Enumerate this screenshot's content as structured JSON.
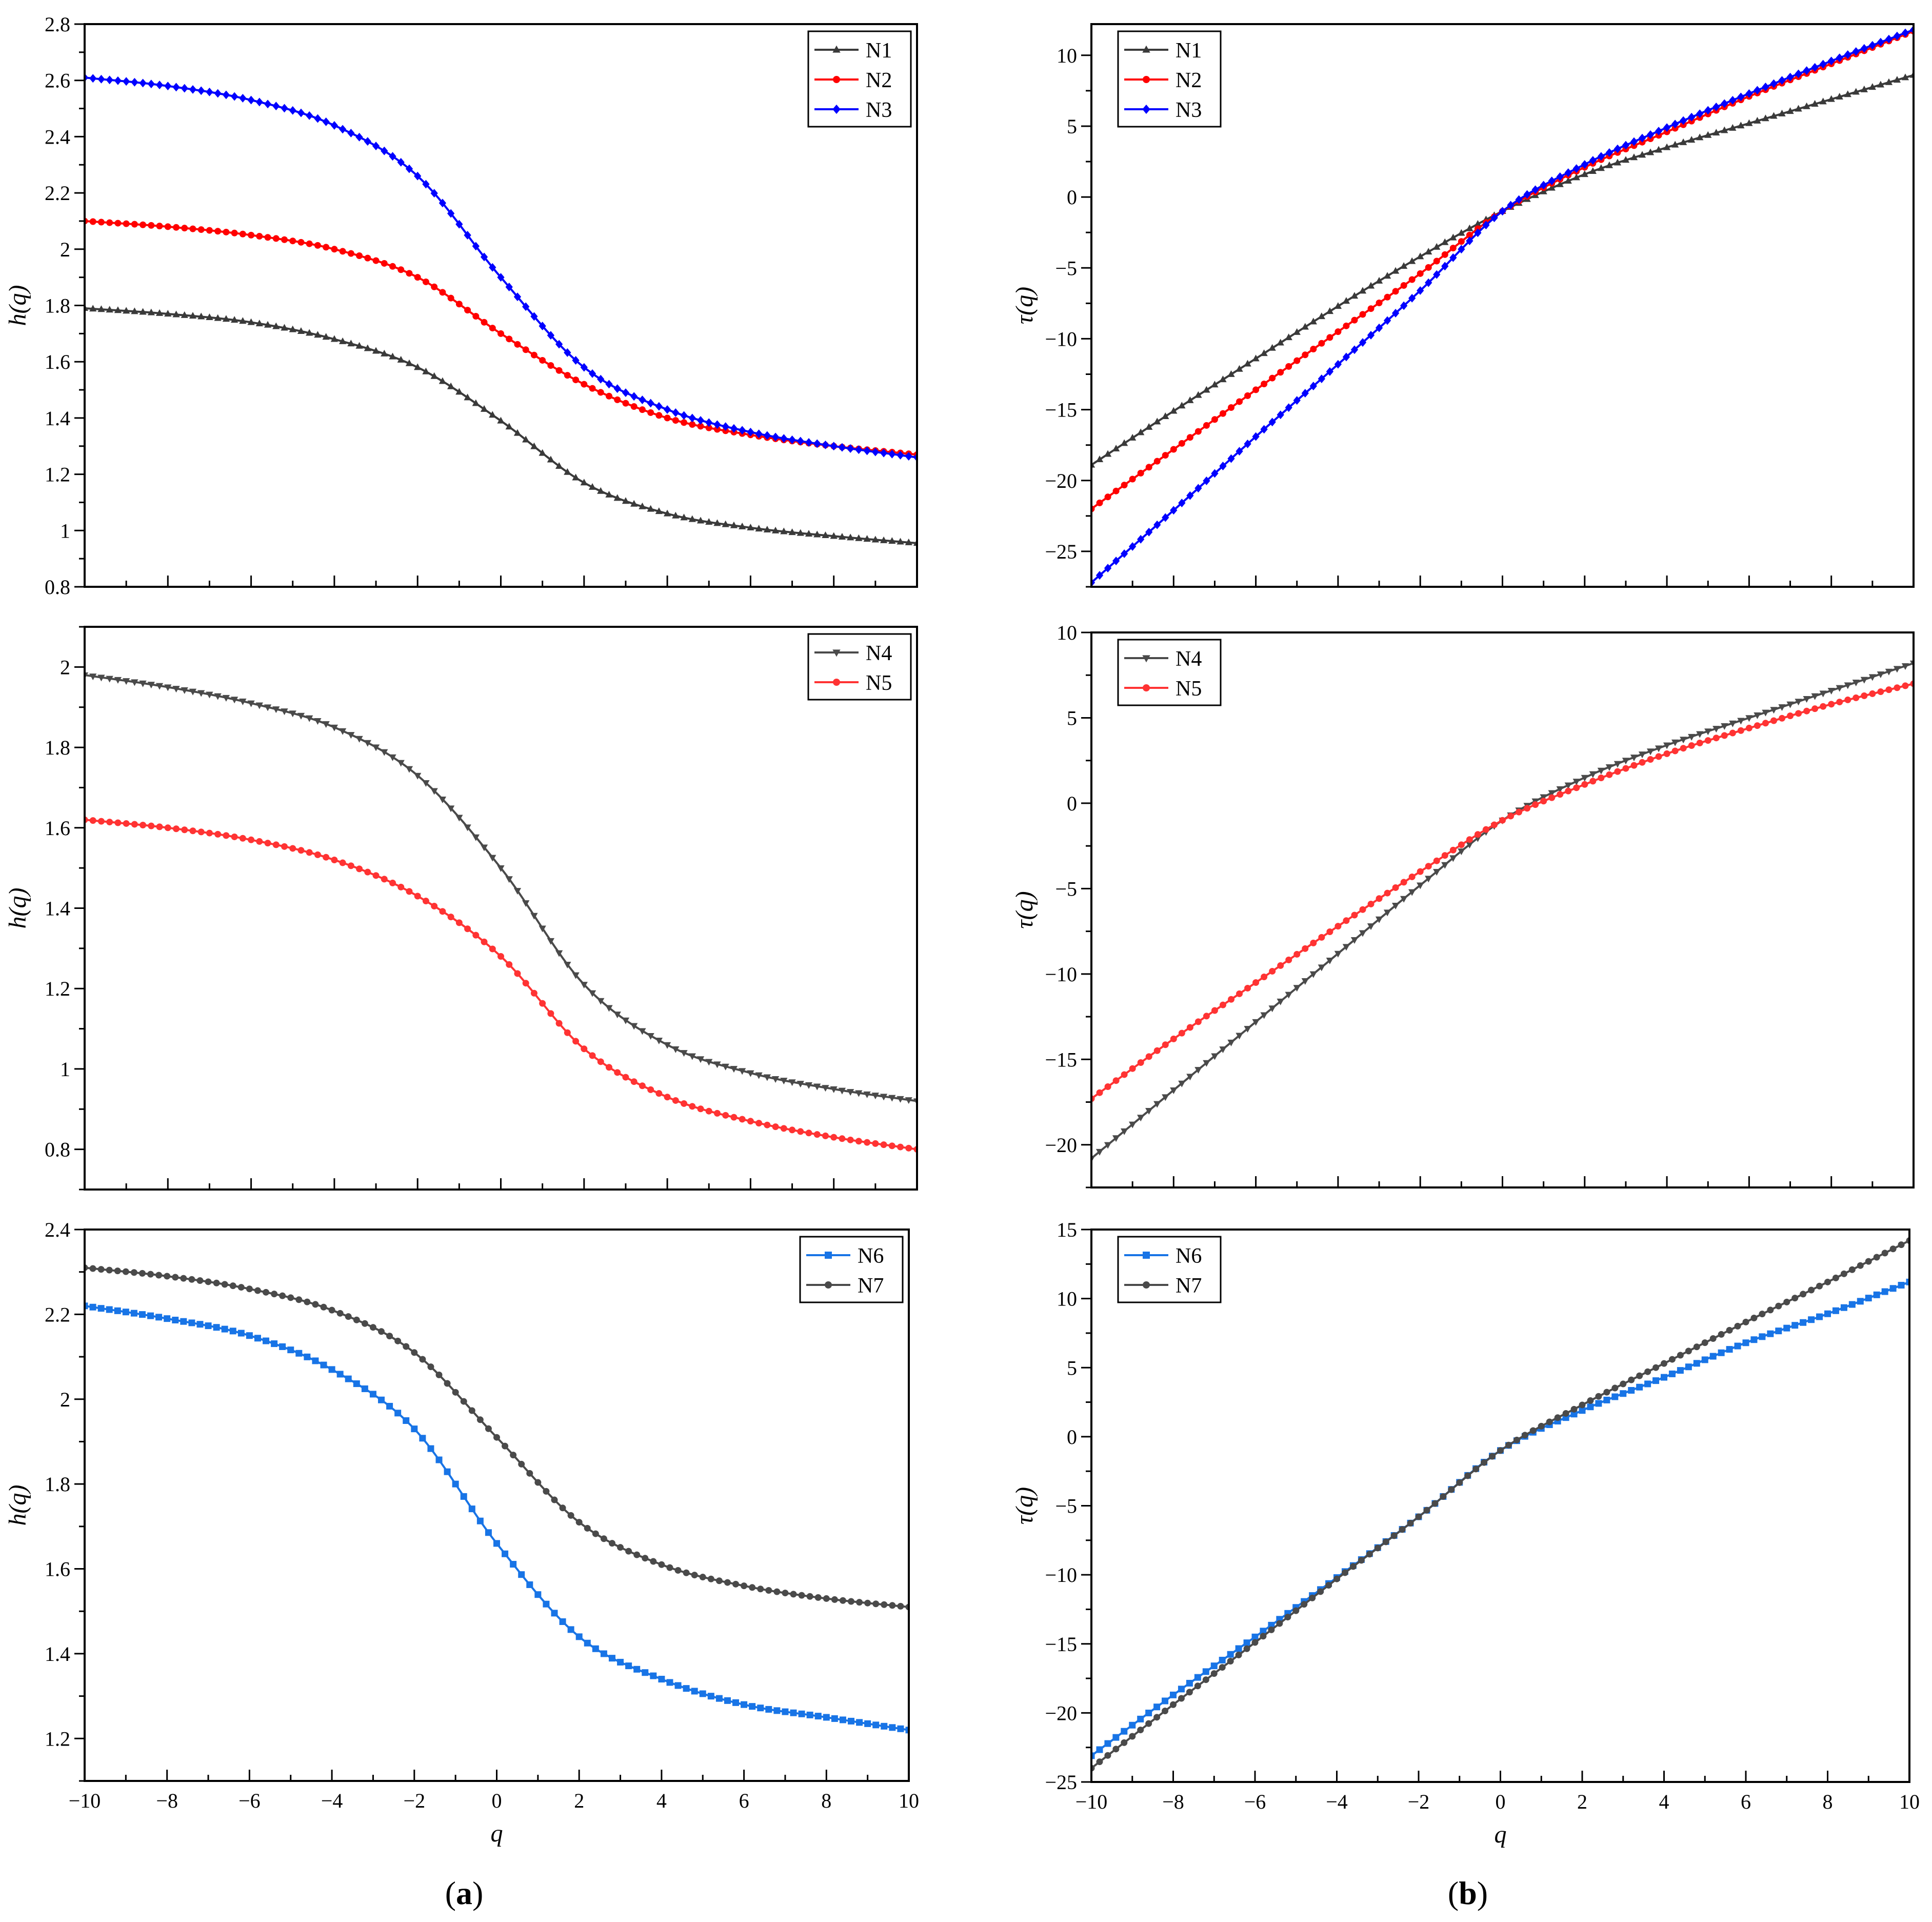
{
  "panel_labels": {
    "a": "a",
    "b": "b"
  },
  "chart_data": [
    {
      "id": "a1",
      "type": "line",
      "xlabel": "q",
      "ylabel": "h(q)",
      "xlim": [
        -10,
        10
      ],
      "ylim": [
        0.8,
        2.8
      ],
      "xticks": [
        -10,
        -8,
        -6,
        -4,
        -2,
        0,
        2,
        4,
        6,
        8,
        10
      ],
      "yticks": [
        0.8,
        1.0,
        1.2,
        1.4,
        1.6,
        1.8,
        2.0,
        2.2,
        2.4,
        2.6,
        2.8
      ],
      "show_xtick_labels": false,
      "legend": "top-right",
      "series": [
        {
          "name": "N1",
          "color": "#3a3a3a",
          "marker": "triangle-up",
          "values": [
            1.79,
            1.77,
            1.74,
            1.68,
            1.58,
            1.39,
            1.17,
            1.06,
            1.01,
            0.98,
            0.955
          ]
        },
        {
          "name": "N2",
          "color": "#ff0000",
          "marker": "circle",
          "values": [
            2.1,
            2.08,
            2.05,
            2.0,
            1.9,
            1.7,
            1.52,
            1.4,
            1.34,
            1.3,
            1.27
          ]
        },
        {
          "name": "N3",
          "color": "#0000ff",
          "marker": "diamond",
          "values": [
            2.61,
            2.58,
            2.53,
            2.44,
            2.26,
            1.9,
            1.58,
            1.43,
            1.35,
            1.3,
            1.26
          ]
        }
      ]
    },
    {
      "id": "b1",
      "type": "line",
      "xlabel": "q",
      "ylabel": "τ(q)",
      "xlim": [
        -10,
        10
      ],
      "ylim": [
        -27.5,
        12.2
      ],
      "xticks": [
        -10,
        -8,
        -6,
        -4,
        -2,
        0,
        2,
        4,
        6,
        8,
        10
      ],
      "yticks": [
        -25,
        -20,
        -15,
        -10,
        -5,
        0,
        5,
        10
      ],
      "show_xtick_labels": false,
      "legend": "top-left",
      "series": [
        {
          "name": "N1",
          "color": "#3a3a3a",
          "marker": "triangle-up",
          "values": [
            -18.9,
            -15.1,
            -11.4,
            -7.7,
            -4.2,
            -1.0,
            1.6,
            3.5,
            5.2,
            6.9,
            8.6
          ]
        },
        {
          "name": "N2",
          "color": "#ff0000",
          "marker": "circle",
          "values": [
            -22.0,
            -17.8,
            -13.6,
            -9.5,
            -5.4,
            -1.0,
            2.1,
            4.6,
            7.1,
            9.4,
            11.7
          ]
        },
        {
          "name": "N3",
          "color": "#0000ff",
          "marker": "diamond",
          "values": [
            -27.2,
            -22.1,
            -16.9,
            -11.8,
            -6.6,
            -1.0,
            2.3,
            4.9,
            7.3,
            9.6,
            11.8
          ]
        }
      ]
    },
    {
      "id": "a2",
      "type": "line",
      "xlabel": "q",
      "ylabel": "h(q)",
      "xlim": [
        -10,
        10
      ],
      "ylim": [
        0.7,
        2.1
      ],
      "xticks": [
        -10,
        -8,
        -6,
        -4,
        -2,
        0,
        2,
        4,
        6,
        8,
        10
      ],
      "yticks": [
        0.8,
        1.0,
        1.2,
        1.4,
        1.6,
        1.8,
        2.0
      ],
      "show_xtick_labels": false,
      "legend": "top-right",
      "series": [
        {
          "name": "N4",
          "color": "#4a4a4a",
          "marker": "triangle-down",
          "values": [
            1.98,
            1.95,
            1.91,
            1.85,
            1.73,
            1.5,
            1.21,
            1.06,
            0.99,
            0.95,
            0.92
          ]
        },
        {
          "name": "N5",
          "color": "#ff3333",
          "marker": "circle",
          "values": [
            1.62,
            1.6,
            1.57,
            1.52,
            1.43,
            1.28,
            1.05,
            0.93,
            0.87,
            0.83,
            0.8
          ]
        }
      ]
    },
    {
      "id": "b2",
      "type": "line",
      "xlabel": "q",
      "ylabel": "τ(q)",
      "xlim": [
        -10,
        10
      ],
      "ylim": [
        -22.5,
        10
      ],
      "xticks": [
        -10,
        -8,
        -6,
        -4,
        -2,
        0,
        2,
        4,
        6,
        8,
        10
      ],
      "yticks": [
        -20,
        -15,
        -10,
        -5,
        0,
        5,
        10
      ],
      "show_xtick_labels": false,
      "legend": "top-left",
      "series": [
        {
          "name": "N4",
          "color": "#4a4a4a",
          "marker": "triangle-down",
          "values": [
            -20.8,
            -16.8,
            -12.8,
            -8.8,
            -4.8,
            -1.0,
            1.5,
            3.4,
            5.0,
            6.6,
            8.2
          ]
        },
        {
          "name": "N5",
          "color": "#ff3333",
          "marker": "circle",
          "values": [
            -17.3,
            -13.8,
            -10.5,
            -7.2,
            -4.0,
            -1.0,
            1.1,
            2.9,
            4.4,
            5.8,
            7.0
          ]
        }
      ]
    },
    {
      "id": "a3",
      "type": "line",
      "xlabel": "q",
      "ylabel": "h(q)",
      "xlim": [
        -10,
        10
      ],
      "ylim": [
        1.1,
        2.4
      ],
      "xticks": [
        -10,
        -8,
        -6,
        -4,
        -2,
        0,
        2,
        4,
        6,
        8,
        10
      ],
      "yticks": [
        1.2,
        1.4,
        1.6,
        1.8,
        2.0,
        2.2,
        2.4
      ],
      "show_xtick_labels": true,
      "legend": "top-right",
      "series": [
        {
          "name": "N6",
          "color": "#1874e6",
          "marker": "square",
          "values": [
            2.22,
            2.19,
            2.15,
            2.07,
            1.93,
            1.66,
            1.44,
            1.34,
            1.28,
            1.25,
            1.22
          ]
        },
        {
          "name": "N7",
          "color": "#4a4a4a",
          "marker": "circle",
          "values": [
            2.31,
            2.29,
            2.26,
            2.21,
            2.11,
            1.91,
            1.71,
            1.61,
            1.56,
            1.53,
            1.51
          ]
        }
      ]
    },
    {
      "id": "b3",
      "type": "line",
      "xlabel": "q",
      "ylabel": "τ(q)",
      "xlim": [
        -10,
        10
      ],
      "ylim": [
        -25,
        15
      ],
      "xticks": [
        -10,
        -8,
        -6,
        -4,
        -2,
        0,
        2,
        4,
        6,
        8,
        10
      ],
      "yticks": [
        -25,
        -20,
        -15,
        -10,
        -5,
        0,
        5,
        10,
        15
      ],
      "show_xtick_labels": true,
      "legend": "top-left",
      "series": [
        {
          "name": "N6",
          "color": "#1874e6",
          "marker": "square",
          "values": [
            -23.1,
            -18.7,
            -14.5,
            -10.2,
            -5.8,
            -1.0,
            1.9,
            4.3,
            6.8,
            8.9,
            11.2
          ]
        },
        {
          "name": "N7",
          "color": "#4a4a4a",
          "marker": "circle",
          "values": [
            -24.0,
            -19.4,
            -14.9,
            -10.3,
            -5.8,
            -1.0,
            2.3,
            5.3,
            8.3,
            11.2,
            14.2
          ]
        }
      ]
    }
  ]
}
